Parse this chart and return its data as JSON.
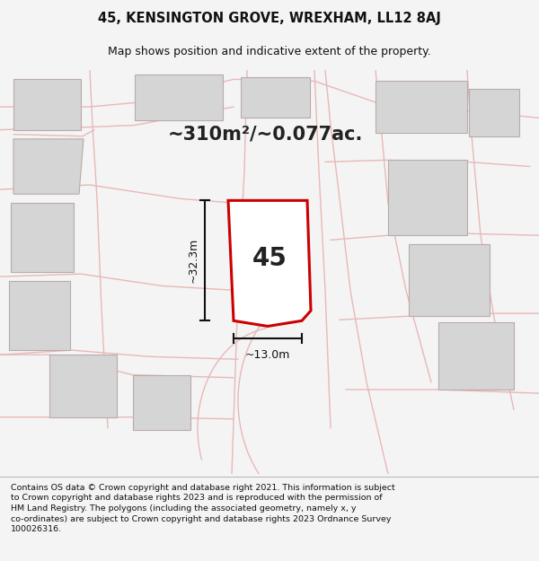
{
  "title_line1": "45, KENSINGTON GROVE, WREXHAM, LL12 8AJ",
  "title_line2": "Map shows position and indicative extent of the property.",
  "area_text": "~310m²/~0.077ac.",
  "number_label": "45",
  "dim_height": "~32.3m",
  "dim_width": "~13.0m",
  "footer_lines": [
    "Contains OS data © Crown copyright and database right 2021. This information is subject",
    "to Crown copyright and database rights 2023 and is reproduced with the permission of",
    "HM Land Registry. The polygons (including the associated geometry, namely x, y",
    "co-ordinates) are subject to Crown copyright and database rights 2023 Ordnance Survey",
    "100026316."
  ],
  "bg_color": "#f4f4f4",
  "map_bg": "#eeecea",
  "building_fill": "#d5d5d5",
  "building_edge": "#bbaaaa",
  "road_color": "#e8b8b8",
  "highlight_color": "#cc0000",
  "dim_color": "#111111",
  "title_color": "#111111",
  "footer_color": "#111111",
  "title_fontsize": 10.5,
  "subtitle_fontsize": 9.0,
  "area_fontsize": 15,
  "number_fontsize": 20,
  "dim_fontsize": 9,
  "footer_fontsize": 6.8
}
